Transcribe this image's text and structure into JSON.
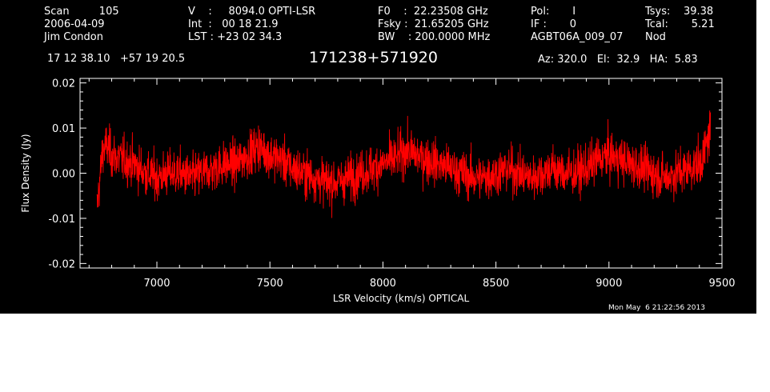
{
  "header": {
    "col1": [
      "Scan         105",
      "2006-04-09",
      "Jim Condon"
    ],
    "col2": [
      "V    :     8094.0 OPTI-LSR",
      "Int  :   00 18 21.9",
      "LST : +23 02 34.3"
    ],
    "col3": [
      "F0    :  22.23508 GHz",
      "Fsky :  21.65205 GHz",
      "BW    : 200.0000 MHz"
    ],
    "col4": [
      "Pol:       I",
      "IF :       0",
      "AGBT06A_009_07"
    ],
    "col5": [
      "Tsys:    39.38",
      "Tcal:       5.21",
      "Nod"
    ],
    "coords": "17 12 38.10   +57 19 20.5",
    "source": "171238+571920",
    "azelha": "Az: 320.0   El:  32.9   HA:  5.83"
  },
  "timestamp": "Mon May  6 21:22:56 2013",
  "colors": {
    "background": "#000000",
    "axes": "#ffffff",
    "trace": "#ff0000"
  },
  "chart_data": {
    "type": "line",
    "xlabel": "LSR Velocity (km/s) OPTICAL",
    "ylabel": "Flux Density (Jy)",
    "xlim": [
      6660,
      9500
    ],
    "ylim": [
      -0.021,
      0.021
    ],
    "xticks": [
      7000,
      7500,
      8000,
      8500,
      9000,
      9500
    ],
    "xtick_labels": [
      "7000",
      "7500",
      "8000",
      "8500",
      "9000",
      "9500"
    ],
    "yticks": [
      -0.02,
      -0.01,
      0.0,
      0.01,
      0.02
    ],
    "ytick_labels": [
      "-0.02",
      "-0.01",
      "0.00",
      "0.01",
      "0.02"
    ],
    "series": [
      {
        "x": [
          6735,
          6750,
          6760,
          6780,
          6800,
          6850,
          6900,
          6950,
          7000,
          7050,
          7100,
          7150,
          7200,
          7250,
          7300,
          7350,
          7400,
          7450,
          7500,
          7550,
          7600,
          7650,
          7700,
          7750,
          7800,
          7850,
          7900,
          7950,
          8000,
          8050,
          8100,
          8150,
          8200,
          8250,
          8300,
          8350,
          8400,
          8450,
          8500,
          8550,
          8600,
          8650,
          8700,
          8750,
          8800,
          8850,
          8900,
          8950,
          9000,
          9050,
          9100,
          9150,
          9200,
          9250,
          9300,
          9350,
          9400,
          9420,
          9440,
          9450
        ],
        "y": [
          -0.008,
          0.0,
          0.005,
          0.006,
          0.004,
          0.003,
          0.002,
          0.0,
          -0.001,
          0.0,
          0.0,
          -0.001,
          0.0,
          0.001,
          0.002,
          0.002,
          0.004,
          0.006,
          0.004,
          0.003,
          0.001,
          0.0,
          -0.001,
          -0.002,
          -0.002,
          -0.001,
          0.0,
          0.001,
          0.002,
          0.003,
          0.005,
          0.004,
          0.003,
          0.002,
          0.001,
          0.0,
          -0.001,
          -0.001,
          0.0,
          0.001,
          0.0,
          -0.001,
          0.0,
          0.001,
          0.0,
          0.0,
          0.001,
          0.003,
          0.004,
          0.003,
          0.002,
          0.001,
          0.0,
          -0.001,
          0.0,
          0.001,
          0.002,
          0.004,
          0.008,
          0.01
        ],
        "noise_rms": 0.0025
      }
    ]
  }
}
